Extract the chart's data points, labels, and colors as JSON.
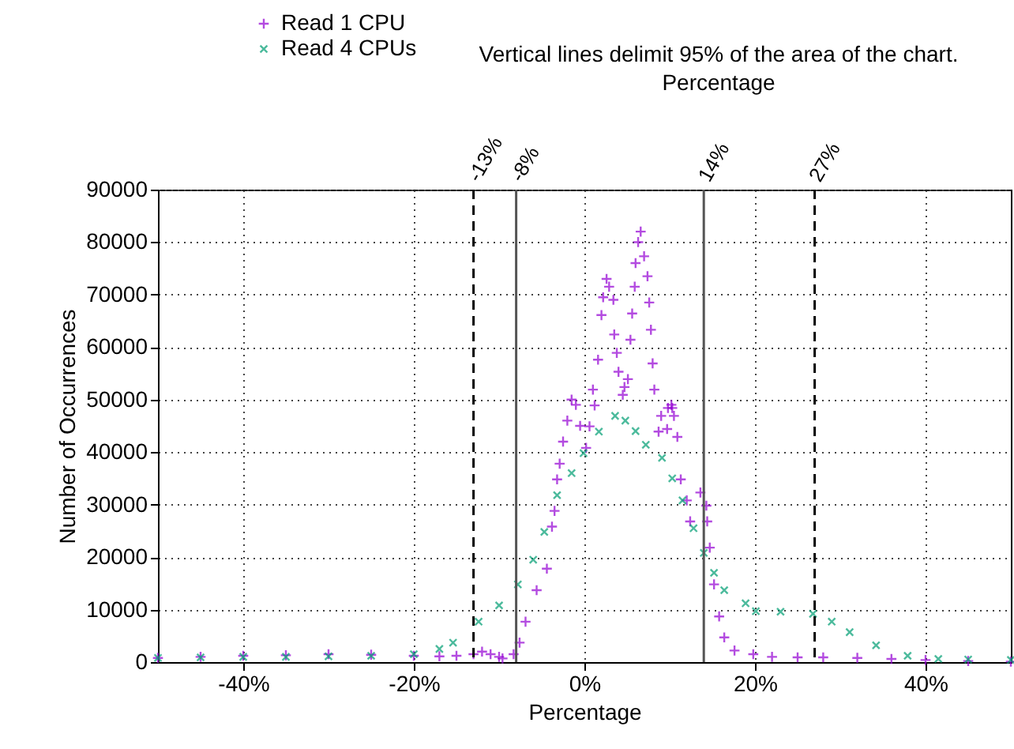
{
  "chart_data": {
    "type": "scatter",
    "xlabel": "Percentage",
    "ylabel": "Number of Occurrences",
    "annotations": [
      "Vertical lines delimit 95% of the area of the chart.",
      "Percentage"
    ],
    "xlim": [
      -50,
      50
    ],
    "xticks": [
      {
        "value": -40,
        "label": "-40%"
      },
      {
        "value": -20,
        "label": "-20%"
      },
      {
        "value": 0,
        "label": "0%"
      },
      {
        "value": 20,
        "label": "20%"
      },
      {
        "value": 40,
        "label": "40%"
      }
    ],
    "ylim": [
      0,
      90000
    ],
    "yticks": [
      0,
      10000,
      20000,
      30000,
      40000,
      50000,
      60000,
      70000,
      80000,
      90000
    ],
    "grid": true,
    "legend": "top left",
    "ref_lines": [
      {
        "axis": "x",
        "value": -13,
        "label": "-13%",
        "color": "#000000",
        "line_style": "dashed"
      },
      {
        "axis": "x",
        "value": -8,
        "label": "-8%",
        "color": "#555555",
        "line_style": "solid"
      },
      {
        "axis": "x",
        "value": 14,
        "label": "14%",
        "color": "#555555",
        "line_style": "solid"
      },
      {
        "axis": "x",
        "value": 27,
        "label": "27%",
        "color": "#000000",
        "line_style": "dashed"
      }
    ],
    "series": [
      {
        "name": "Read 1 CPU",
        "color": "#9400d3",
        "marker": "cross",
        "x": [
          -50,
          -45,
          -40,
          -35,
          -30,
          -25,
          -20,
          -17,
          -15,
          -13,
          -12,
          -11,
          -10,
          -9.6,
          -8.3,
          -7.6,
          -6.9,
          -5.6,
          -4.4,
          -3.8,
          -3.5,
          -3.2,
          -2.9,
          -2.5,
          -2,
          -1.5,
          -1,
          -0.5,
          0.2,
          0.6,
          1.0,
          1.2,
          1.6,
          2.0,
          2.2,
          2.6,
          2.9,
          3.4,
          3.5,
          3.8,
          4.0,
          4.5,
          4.7,
          5.1,
          5.4,
          5.6,
          5.9,
          6.0,
          6.3,
          6.6,
          7.0,
          7.4,
          7.6,
          7.8,
          8.0,
          8.2,
          8.7,
          9.0,
          9.7,
          9.8,
          10.2,
          10.3,
          10.5,
          10.9,
          11.3,
          12.0,
          12.4,
          13.6,
          14.3,
          14.4,
          14.7,
          15.2,
          15.8,
          16.4,
          17.6,
          19.8,
          22,
          25,
          28,
          32,
          36,
          40,
          45,
          50
        ],
        "values": [
          800,
          1000,
          1200,
          1300,
          1500,
          1400,
          1200,
          1100,
          1200,
          1500,
          2000,
          1500,
          1000,
          700,
          1500,
          3700,
          7700,
          13700,
          17800,
          25800,
          28800,
          34800,
          37800,
          42000,
          46000,
          50000,
          49000,
          45000,
          40800,
          44900,
          51900,
          48900,
          57600,
          66100,
          69500,
          73000,
          71500,
          69000,
          62400,
          58900,
          55300,
          50900,
          52400,
          53900,
          61400,
          66400,
          71500,
          76000,
          80000,
          82000,
          77300,
          73500,
          68500,
          63300,
          56900,
          51900,
          43900,
          46900,
          44400,
          48400,
          49000,
          48400,
          46900,
          42900,
          34800,
          30800,
          26800,
          32300,
          29800,
          26800,
          21800,
          14800,
          8700,
          4700,
          2200,
          1500,
          1000,
          900,
          900,
          800,
          600,
          400,
          200,
          100
        ]
      },
      {
        "name": "Read 4 CPUs",
        "color": "#009e73",
        "marker": "cross",
        "x": [
          -50,
          -45,
          -40,
          -35,
          -30,
          -25,
          -20,
          -17,
          -15.4,
          -12.4,
          -10,
          -7.8,
          -6,
          -4.7,
          -3.2,
          -1.5,
          -0.1,
          1.7,
          3.6,
          4.8,
          6,
          7.2,
          9.1,
          10.3,
          11.5,
          12.8,
          14.0,
          15.2,
          16.4,
          18.9,
          20.1,
          23,
          26.8,
          29,
          31.1,
          34.2,
          37.9,
          41.5,
          45,
          50
        ],
        "values": [
          800,
          900,
          1000,
          1000,
          1100,
          1200,
          1500,
          2500,
          3700,
          7700,
          10800,
          14800,
          19500,
          24800,
          31800,
          36000,
          39800,
          43900,
          46900,
          46000,
          44000,
          41400,
          38900,
          35000,
          30800,
          25500,
          20800,
          17000,
          13700,
          11200,
          9700,
          9600,
          9200,
          7700,
          5700,
          3200,
          1200,
          600,
          500,
          400
        ]
      }
    ]
  }
}
